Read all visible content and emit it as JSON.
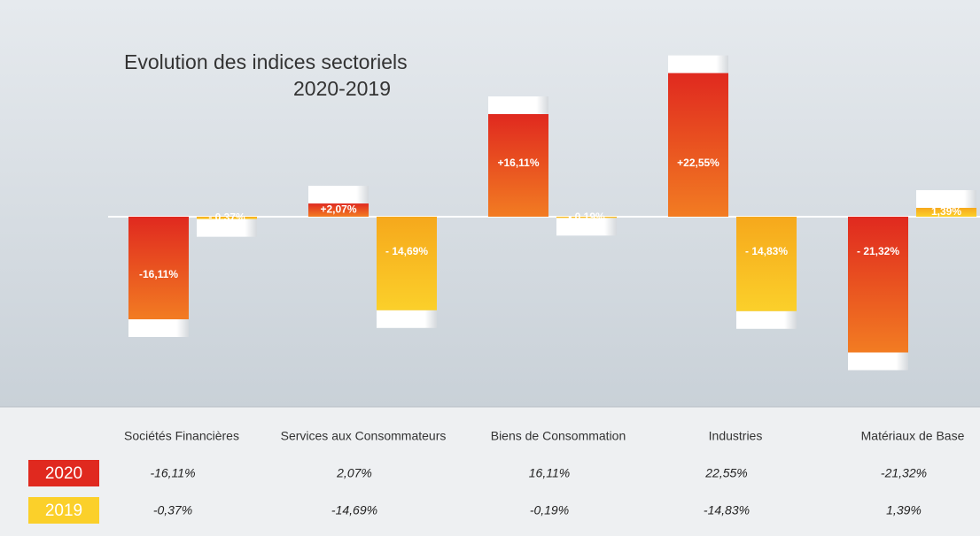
{
  "chart_data": {
    "type": "bar",
    "title": "Evolution des indices sectoriels",
    "subtitle": "2020-2019",
    "categories": [
      "Sociétés Financières",
      "Services aux Consommateurs",
      "Biens de Consommation",
      "Industries",
      "Matériaux de Base"
    ],
    "ylim": [
      -25,
      25
    ],
    "series": [
      {
        "name": "2020",
        "color": "#e0291f",
        "color2": "#f27c22",
        "values": [
          -16.11,
          2.07,
          16.11,
          22.55,
          -21.32
        ],
        "value_labels": [
          "-16,11%",
          "+2,07%",
          "+16,11%",
          "+22,55%",
          "- 21,32%"
        ]
      },
      {
        "name": "2019",
        "color": "#f6a81c",
        "color2": "#fbd02a",
        "values": [
          -0.37,
          -14.69,
          -0.19,
          -14.83,
          1.39
        ],
        "value_labels": [
          "- 0,37%",
          "- 14,69%",
          "- 0,19%",
          "- 14,83%",
          "1,39%"
        ]
      }
    ]
  },
  "table": {
    "rows": [
      [
        "-16,11%",
        "2,07%",
        "16,11%",
        "22,55%",
        "-21,32%"
      ],
      [
        "-0,37%",
        "-14,69%",
        "-0,19%",
        "-14,83%",
        "1,39%"
      ]
    ]
  }
}
